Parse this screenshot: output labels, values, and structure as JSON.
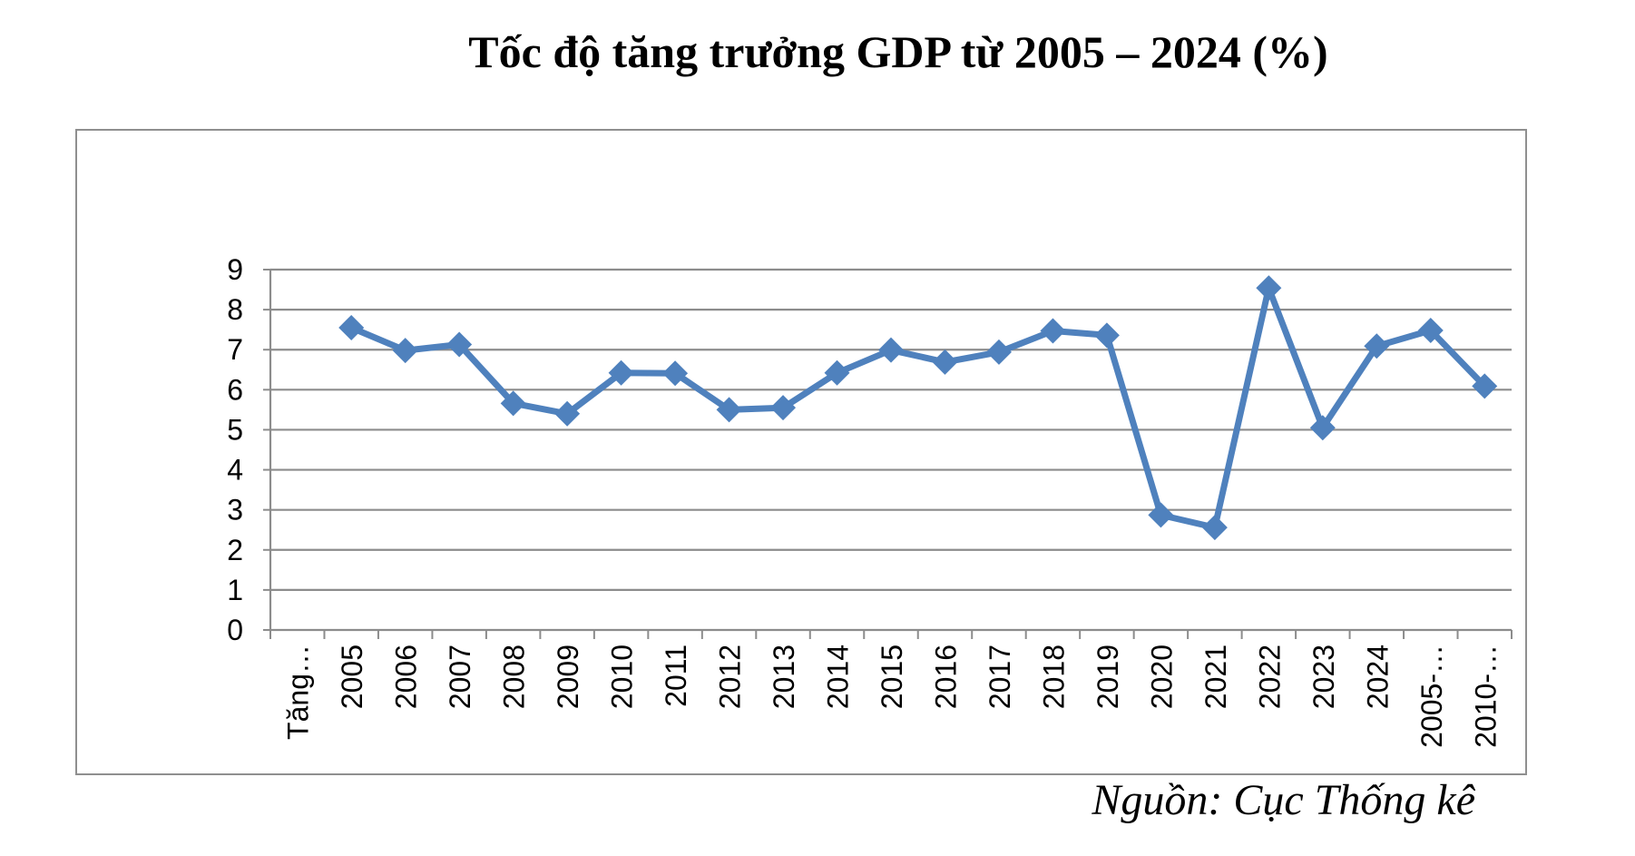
{
  "chart_data": {
    "type": "line",
    "title": "Tốc độ tăng trưởng GDP từ 2005 – 2024 (%)",
    "categories": [
      "Tăng…",
      "2005",
      "2006",
      "2007",
      "2008",
      "2009",
      "2010",
      "2011",
      "2012",
      "2013",
      "2014",
      "2015",
      "2016",
      "2017",
      "2018",
      "2019",
      "2020",
      "2021",
      "2022",
      "2023",
      "2024",
      "2005-…",
      "2010-…"
    ],
    "series": [
      {
        "values": [
          null,
          7.55,
          6.98,
          7.13,
          5.66,
          5.4,
          6.42,
          6.41,
          5.5,
          5.55,
          6.42,
          6.99,
          6.69,
          6.94,
          7.47,
          7.36,
          2.87,
          2.56,
          8.54,
          5.05,
          7.09,
          7.48,
          6.09
        ],
        "color": "#4f81bd"
      }
    ],
    "ylim": [
      0,
      9
    ],
    "yticks": [
      "0",
      "1",
      "2",
      "3",
      "4",
      "5",
      "6",
      "7",
      "8",
      "9"
    ],
    "grid": true,
    "marker": "diamond"
  },
  "source": "Nguồn: Cục Thống kê"
}
